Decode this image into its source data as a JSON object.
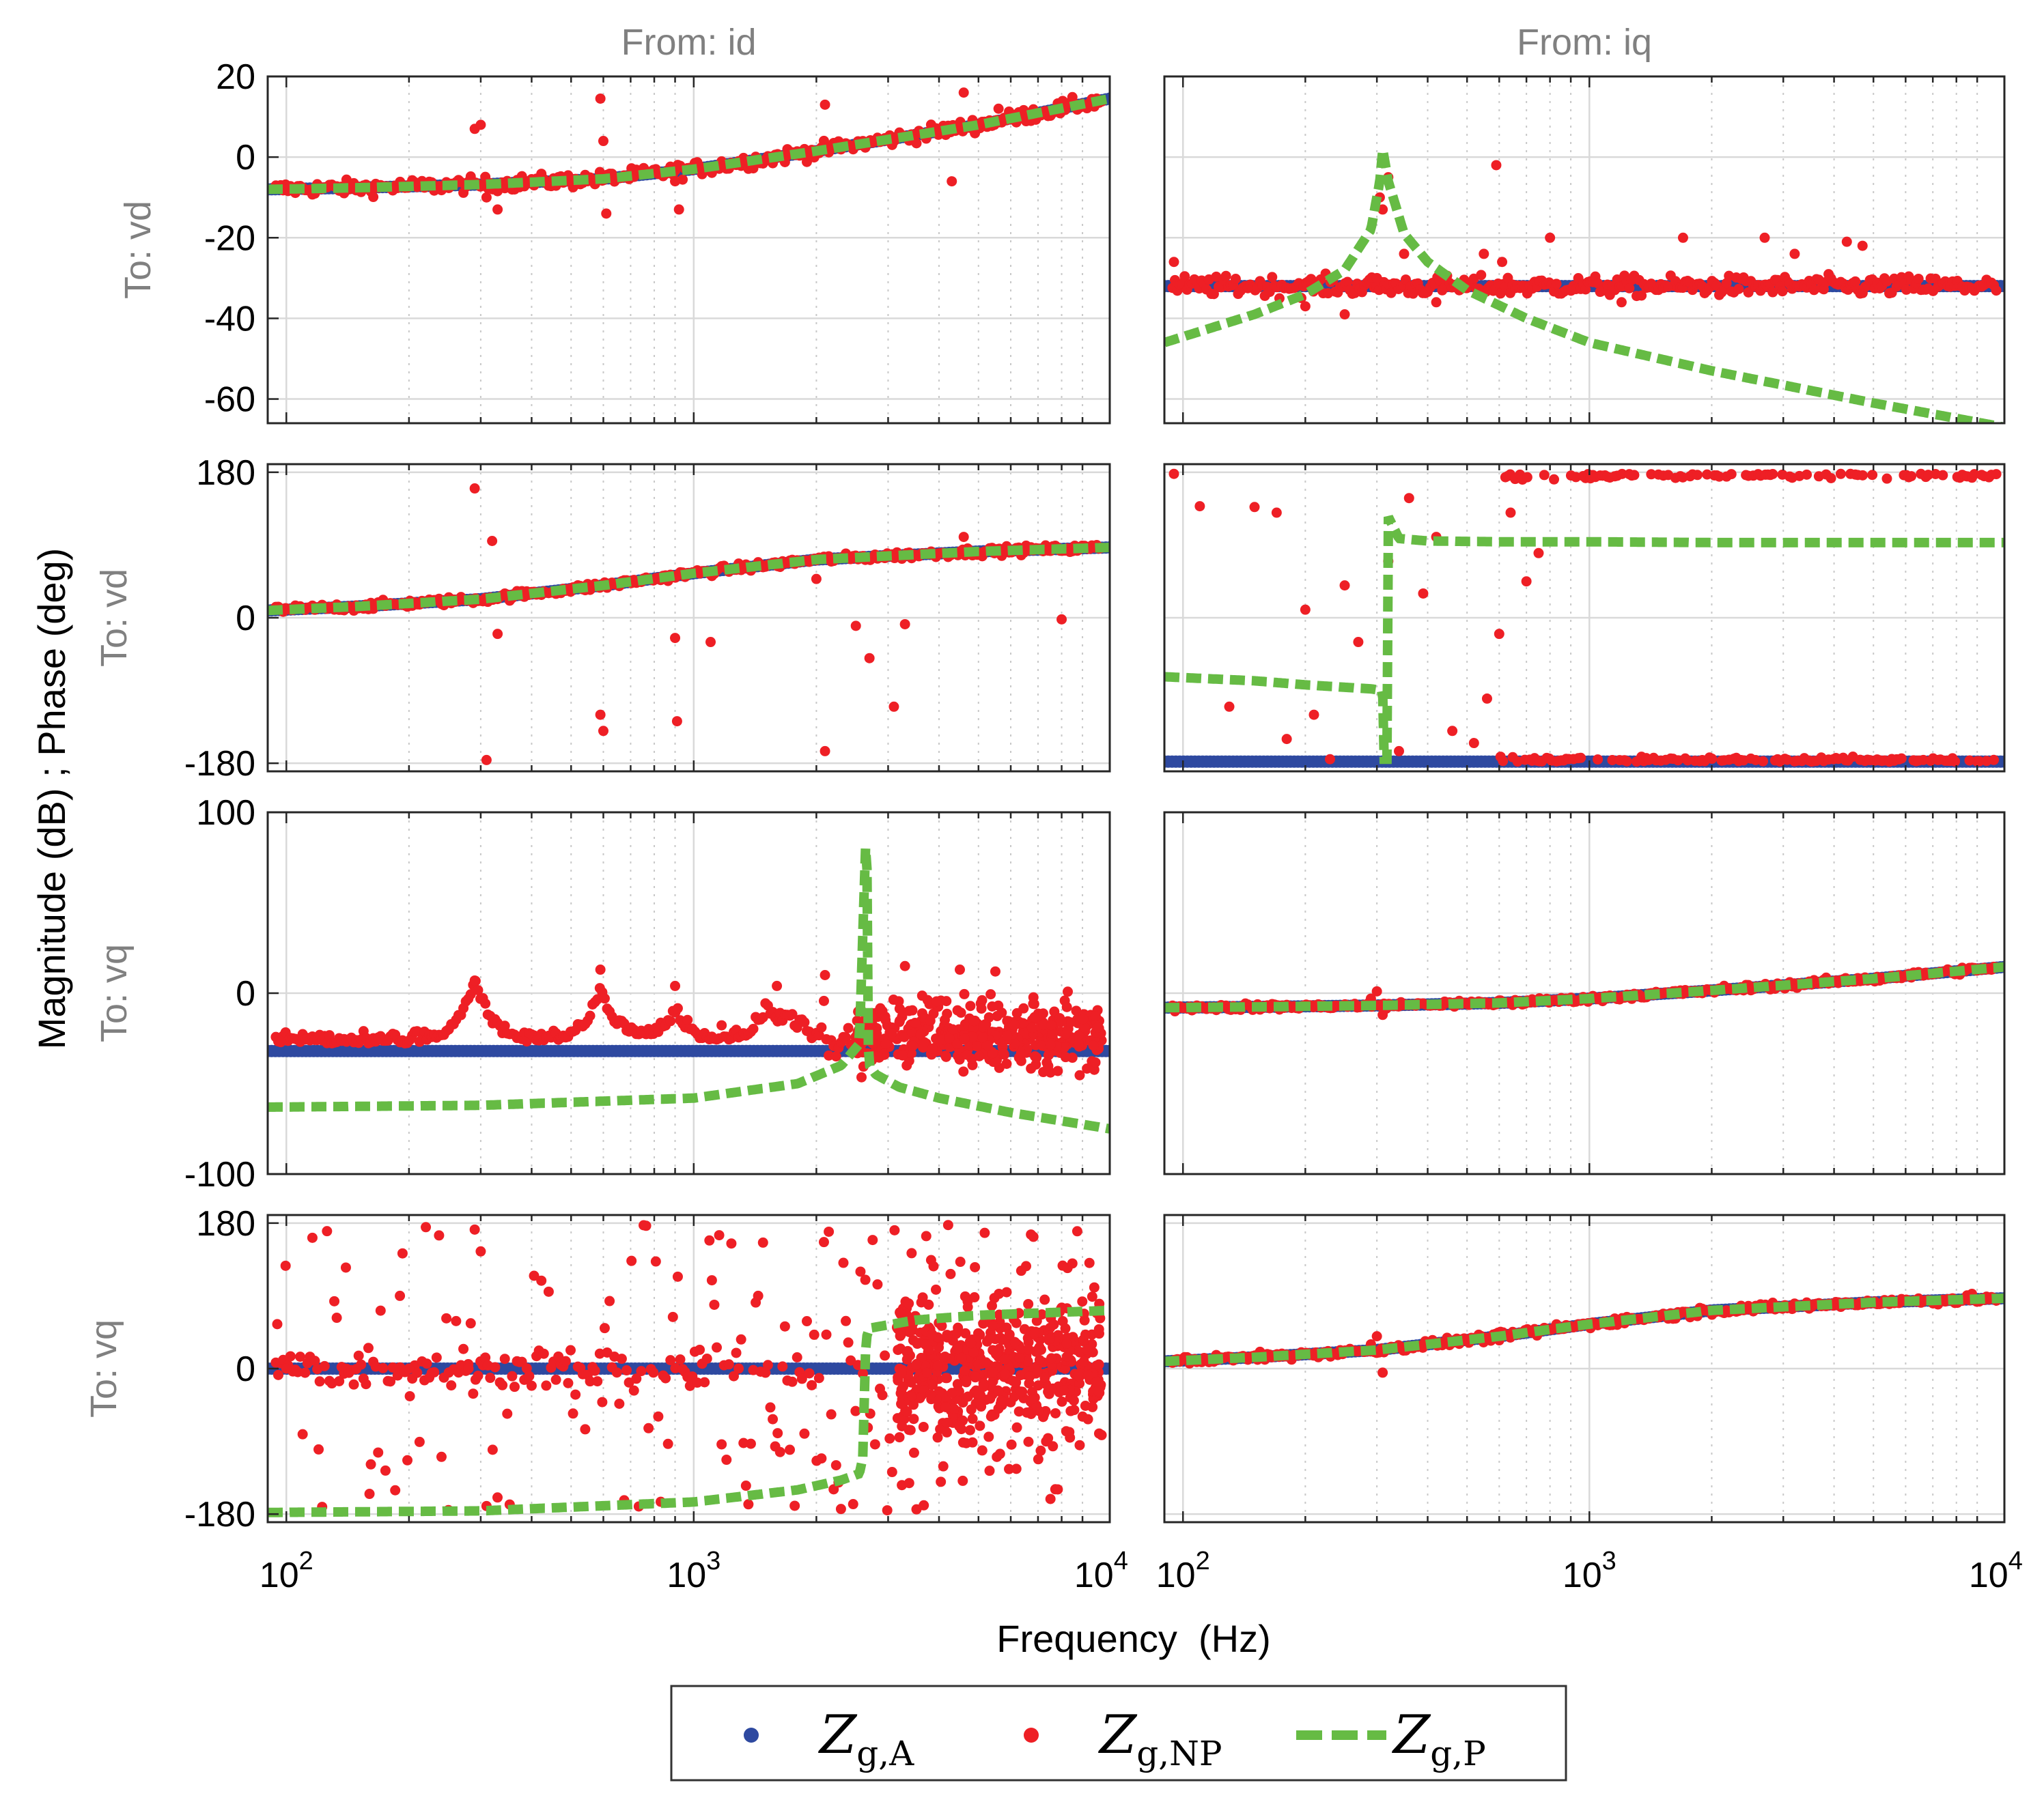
{
  "chart_data": {
    "type": "scatter",
    "title": "",
    "xlabel": "Frequency  (Hz)",
    "ylabel": "Magnitude (dB) ; Phase (deg)",
    "xscale": "log",
    "xlim": [
      90,
      10500
    ],
    "x_ticks": [
      {
        "base": "10",
        "exp": "2",
        "value": 100
      },
      {
        "base": "10",
        "exp": "3",
        "value": 1000
      },
      {
        "base": "10",
        "exp": "4",
        "value": 10000
      }
    ],
    "column_titles": [
      "From: id",
      "From: iq"
    ],
    "row_titles": [
      "To: vd",
      "To: vd",
      "To: vq",
      "To: vq"
    ],
    "colors": {
      "Zg_A": "#2e49a0",
      "Zg_NP": "#ee1f25",
      "Zg_P": "#66bb44",
      "grid": "#d9d9d9"
    },
    "legend": {
      "position": "bottom-center",
      "entries": [
        {
          "key": "Zg_A",
          "symbol": "Z",
          "sub": "g,A"
        },
        {
          "key": "Zg_NP",
          "symbol": "Z",
          "sub": "g,NP"
        },
        {
          "key": "Zg_P",
          "symbol": "Z",
          "sub": "g,P"
        }
      ]
    },
    "panels": [
      {
        "id": "mag_dd",
        "row": 0,
        "col": 0,
        "kind": "magnitude",
        "ylim": [
          -66,
          20
        ],
        "yticks": [
          "20",
          "0",
          "-20",
          "-40",
          "-60"
        ],
        "Zg_A": {
          "f": [
            90,
            150,
            300,
            600,
            1000,
            2000,
            5000,
            10500
          ],
          "v": [
            -8,
            -7.6,
            -6.8,
            -5.4,
            -3,
            1.5,
            8,
            14.5
          ]
        },
        "Zg_P": {
          "f": [
            90,
            150,
            300,
            600,
            1000,
            2000,
            5000,
            10500
          ],
          "v": [
            -8,
            -7.6,
            -6.8,
            -5.4,
            -3,
            1.5,
            8,
            14.5
          ]
        },
        "Zg_NP_outliers": {
          "f": [
            290,
            300,
            310,
            330,
            590,
            600,
            610,
            900,
            920,
            2100,
            3000,
            4300,
            4600,
            5600
          ],
          "v": [
            7,
            8,
            -10,
            -13,
            14.5,
            4,
            -14,
            -6,
            -13,
            13,
            4,
            -6,
            16,
            12
          ]
        }
      },
      {
        "id": "mag_qd",
        "row": 0,
        "col": 1,
        "kind": "magnitude",
        "ylim": [
          -66,
          20
        ],
        "yticks": [
          "20",
          "0",
          "-20",
          "-40",
          "-60"
        ],
        "Zg_A": {
          "f": [
            90,
            10500
          ],
          "v": [
            -32,
            -32
          ]
        },
        "Zg_P": {
          "f": [
            90,
            150,
            200,
            250,
            290,
            305,
            310,
            320,
            350,
            400,
            500,
            700,
            1000,
            2000,
            5000,
            10500
          ],
          "v": [
            -46,
            -39,
            -34,
            -28,
            -18,
            -6,
            2,
            -6,
            -19,
            -26,
            -33,
            -40,
            -46,
            -53,
            -61,
            -67
          ]
        },
        "Zg_NP_outliers": {
          "f": [
            95,
            200,
            250,
            300,
            305,
            310,
            320,
            350,
            420,
            550,
            590,
            610,
            800,
            1200,
            1700,
            2700,
            3200,
            4300,
            4700
          ],
          "v": [
            -26,
            -37,
            -39,
            -30,
            -10,
            -13,
            -5,
            -24,
            -36,
            -24,
            -2,
            -26,
            -20,
            -36,
            -20,
            -20,
            -24,
            -21,
            -22
          ]
        }
      },
      {
        "id": "ph_dd",
        "row": 1,
        "col": 0,
        "kind": "phase",
        "ylim": [
          -190,
          190
        ],
        "yticks": [
          "180",
          "0",
          "-180"
        ],
        "Zg_A": {
          "f": [
            90,
            150,
            300,
            600,
            1000,
            2000,
            5000,
            10500
          ],
          "v": [
            9,
            14,
            23,
            40,
            55,
            72,
            82,
            87
          ]
        },
        "Zg_P": {
          "f": [
            90,
            150,
            300,
            600,
            1000,
            2000,
            5000,
            10500
          ],
          "v": [
            9,
            14,
            23,
            40,
            55,
            72,
            82,
            87
          ]
        },
        "Zg_NP_outliers": {
          "f": [
            290,
            310,
            320,
            330,
            590,
            600,
            900,
            910,
            1100,
            2000,
            2100,
            2500,
            2700,
            3100,
            3300,
            4600,
            8000
          ],
          "v": [
            160,
            -176,
            95,
            -20,
            -120,
            -140,
            -25,
            -128,
            -30,
            48,
            -165,
            -10,
            -50,
            -110,
            -8,
            100,
            -2
          ]
        }
      },
      {
        "id": "ph_qd",
        "row": 1,
        "col": 1,
        "kind": "phase",
        "ylim": [
          -190,
          190
        ],
        "yticks": [
          "180",
          "0",
          "-180"
        ],
        "Zg_A": {
          "f": [
            90,
            10500
          ],
          "v": [
            -178,
            -178
          ]
        },
        "Zg_P": {
          "f": [
            90,
            150,
            200,
            290,
            310,
            312,
            318,
            320,
            340,
            400,
            600,
            1000,
            2000,
            10500
          ],
          "v": [
            -73,
            -78,
            -83,
            -88,
            -90,
            -175,
            -175,
            125,
            98,
            95,
            94,
            94,
            93,
            93
          ]
        },
        "Zg_NP_outliers": {
          "f": [
            95,
            110,
            130,
            150,
            170,
            180,
            200,
            210,
            230,
            250,
            270,
            320,
            340,
            360,
            390,
            420,
            460,
            520,
            560,
            600,
            640,
            700,
            750
          ],
          "v": [
            178,
            138,
            -110,
            137,
            130,
            -150,
            10,
            -120,
            -175,
            40,
            -30,
            70,
            -165,
            148,
            30,
            100,
            -140,
            -155,
            -100,
            -20,
            130,
            45,
            80
          ]
        }
      },
      {
        "id": "mag_dq",
        "row": 2,
        "col": 0,
        "kind": "magnitude",
        "ylim": [
          -100,
          100
        ],
        "yticks": [
          "100",
          "0",
          "-100"
        ],
        "Zg_A": {
          "f": [
            90,
            10500
          ],
          "v": [
            -32,
            -32
          ]
        },
        "Zg_P": {
          "f": [
            90,
            300,
            1000,
            1800,
            2300,
            2550,
            2640,
            2660,
            2680,
            2700,
            2800,
            3200,
            4000,
            6000,
            10500
          ],
          "v": [
            -63,
            -62,
            -58,
            -50,
            -40,
            -28,
            80,
            80,
            -28,
            -40,
            -45,
            -52,
            -58,
            -66,
            -75
          ]
        },
        "Zg_NP_outliers": {
          "f": [
            290,
            590,
            900,
            1600,
            2100,
            3300,
            4500,
            5500
          ],
          "v": [
            7,
            13,
            4,
            4,
            10,
            15,
            13,
            12
          ]
        }
      },
      {
        "id": "mag_qq",
        "row": 2,
        "col": 1,
        "kind": "magnitude",
        "ylim": [
          -100,
          100
        ],
        "yticks": [
          "100",
          "0",
          "-100"
        ],
        "Zg_A": {
          "f": [
            90,
            150,
            300,
            600,
            1000,
            2000,
            5000,
            10500
          ],
          "v": [
            -8,
            -7.6,
            -6.8,
            -5.4,
            -3,
            1.5,
            8,
            14.5
          ]
        },
        "Zg_P": {
          "f": [
            90,
            150,
            300,
            600,
            1000,
            2000,
            5000,
            10500
          ],
          "v": [
            -8,
            -7.6,
            -6.8,
            -5.4,
            -3,
            1.5,
            8,
            14.5
          ]
        },
        "Zg_NP_outliers": {
          "f": [
            290,
            300,
            310,
            600
          ],
          "v": [
            -3,
            1,
            -12,
            -4
          ]
        }
      },
      {
        "id": "ph_dq",
        "row": 3,
        "col": 0,
        "kind": "phase",
        "ylim": [
          -190,
          190
        ],
        "yticks": [
          "180",
          "0",
          "-180"
        ],
        "Zg_A": {
          "f": [
            90,
            10500
          ],
          "v": [
            0,
            0
          ]
        },
        "Zg_P": {
          "f": [
            90,
            300,
            1000,
            1800,
            2300,
            2550,
            2600,
            2640,
            2660,
            2700,
            3500,
            5000,
            10500
          ],
          "v": [
            -178,
            -176,
            -165,
            -150,
            -138,
            -130,
            -110,
            20,
            40,
            50,
            60,
            66,
            72
          ]
        },
        "Zg_NP_outliers": {
          "f": [
            95,
            100,
            120,
            140,
            160,
            190,
            200,
            220,
            250,
            280,
            290,
            300,
            310
          ],
          "v": [
            55,
            0,
            -100,
            125,
            -155,
            90,
            0,
            175,
            -175,
            0,
            172,
            145,
            -170
          ]
        }
      },
      {
        "id": "ph_qq",
        "row": 3,
        "col": 1,
        "kind": "phase",
        "ylim": [
          -190,
          190
        ],
        "yticks": [
          "180",
          "0",
          "-180"
        ],
        "Zg_A": {
          "f": [
            90,
            150,
            300,
            600,
            1000,
            2000,
            5000,
            10500
          ],
          "v": [
            9,
            14,
            23,
            40,
            55,
            72,
            82,
            87
          ]
        },
        "Zg_P": {
          "f": [
            90,
            150,
            300,
            600,
            1000,
            2000,
            5000,
            10500
          ],
          "v": [
            9,
            14,
            23,
            40,
            55,
            72,
            82,
            87
          ]
        },
        "Zg_NP_outliers": {
          "f": [
            290,
            300,
            310,
            330,
            600
          ],
          "v": [
            30,
            40,
            -5,
            25,
            35
          ]
        }
      }
    ]
  }
}
